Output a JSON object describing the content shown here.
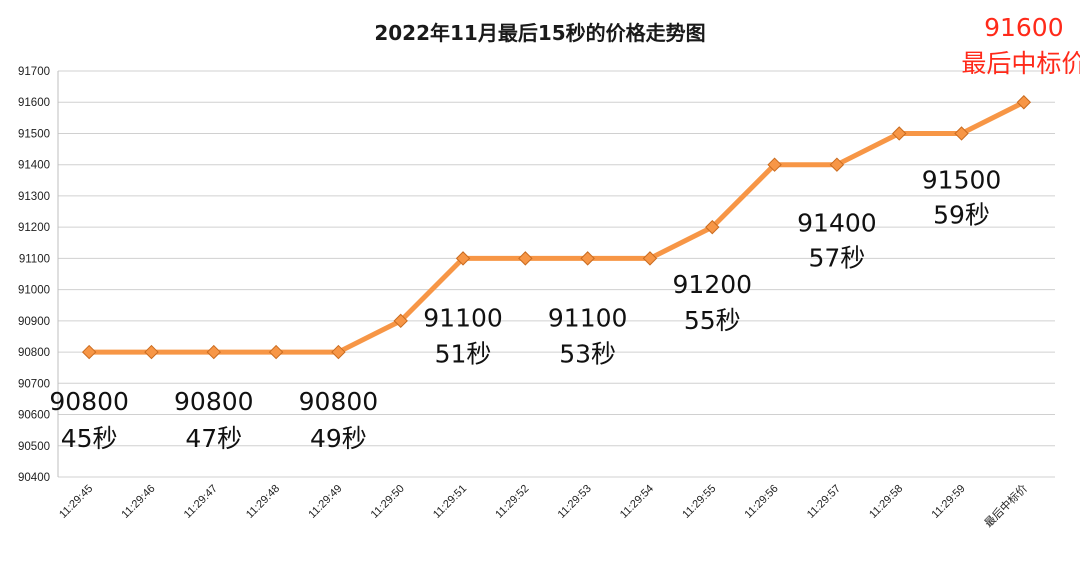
{
  "chart_data": {
    "type": "line",
    "title": "2022年11月最后15秒的价格走势图",
    "xlabel": "",
    "ylabel": "",
    "categories": [
      "11:29:45",
      "11:29:46",
      "11:29:47",
      "11:29:48",
      "11:29:49",
      "11:29:50",
      "11:29:51",
      "11:29:52",
      "11:29:53",
      "11:29:54",
      "11:29:55",
      "11:29:56",
      "11:29:57",
      "11:29:58",
      "11:29:59",
      "最后中标价"
    ],
    "series": [
      {
        "values": [
          90800,
          90800,
          90800,
          90800,
          90800,
          90900,
          91100,
          91100,
          91100,
          91100,
          91200,
          91400,
          91400,
          91500,
          91500,
          91600
        ]
      }
    ],
    "ylim": [
      90400,
      91700
    ],
    "yticks": [
      90400,
      90500,
      90600,
      90700,
      90800,
      90900,
      91000,
      91100,
      91200,
      91300,
      91400,
      91500,
      91600,
      91700
    ],
    "grid": true,
    "legend": "none",
    "line_color": "#f79646",
    "marker_color": "#f79646",
    "annotations": [
      {
        "index": 0,
        "price": "90800",
        "second": "45秒",
        "color": "#111111"
      },
      {
        "index": 2,
        "price": "90800",
        "second": "47秒",
        "color": "#111111"
      },
      {
        "index": 4,
        "price": "90800",
        "second": "49秒",
        "color": "#111111"
      },
      {
        "index": 6,
        "price": "91100",
        "second": "51秒",
        "color": "#111111"
      },
      {
        "index": 8,
        "price": "91100",
        "second": "53秒",
        "color": "#111111"
      },
      {
        "index": 10,
        "price": "91200",
        "second": "55秒",
        "color": "#111111"
      },
      {
        "index": 12,
        "price": "91400",
        "second": "57秒",
        "color": "#111111"
      },
      {
        "index": 14,
        "price": "91500",
        "second": "59秒",
        "color": "#111111"
      },
      {
        "index": 15,
        "price": "91600",
        "second": "最后中标价",
        "color": "#ff2a1a"
      }
    ]
  }
}
